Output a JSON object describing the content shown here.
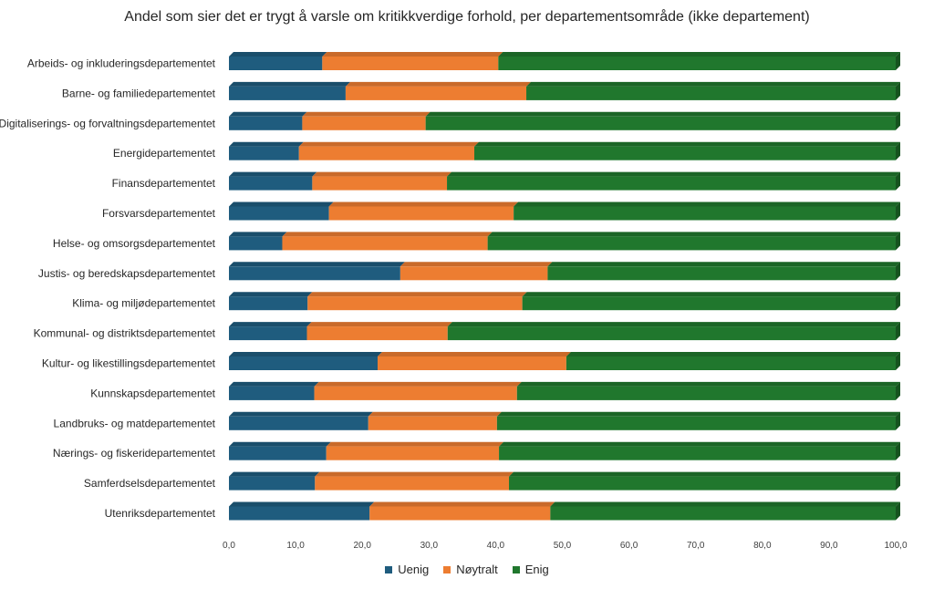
{
  "chart_data": {
    "type": "bar",
    "orientation": "horizontal",
    "stacked": true,
    "title": "Andel som sier det er trygt å varsle om kritikkverdige forhold, per departementsområde (ikke departement)",
    "xlabel": "",
    "ylabel": "",
    "xlim": [
      0,
      100
    ],
    "x_ticks": [
      "0,0",
      "10,0",
      "20,0",
      "30,0",
      "40,0",
      "50,0",
      "60,0",
      "70,0",
      "80,0",
      "90,0",
      "100,0"
    ],
    "grid": false,
    "legend_position": "bottom",
    "categories": [
      "Arbeids- og inkluderingsdepartementet",
      "Barne- og familiedepartementet",
      "Digitaliserings- og forvaltningsdepartementet",
      "Energidepartementet",
      "Finansdepartementet",
      "Forsvarsdepartementet",
      "Helse- og omsorgsdepartementet",
      "Justis- og beredskapsdepartementet",
      "Klima- og miljødepartementet",
      "Kommunal- og distriktsdepartementet",
      "Kultur- og likestillingsdepartementet",
      "Kunnskapsdepartementet",
      "Landbruks- og matdepartementet",
      "Nærings- og fiskeridepartementet",
      "Samferdselsdepartementet",
      "Utenriksdepartementet"
    ],
    "series": [
      {
        "name": "Uenig",
        "color": "#1F5C7E",
        "values": [
          14.0,
          17.5,
          11.0,
          10.5,
          12.5,
          15.0,
          8.0,
          25.7,
          11.8,
          11.7,
          22.3,
          12.8,
          20.9,
          14.6,
          12.9,
          21.1
        ]
      },
      {
        "name": "Nøytralt",
        "color": "#ED7D31",
        "values": [
          26.4,
          27.1,
          18.5,
          26.3,
          20.2,
          27.7,
          30.8,
          22.1,
          32.2,
          21.1,
          28.3,
          30.4,
          19.3,
          25.9,
          29.1,
          27.1
        ]
      },
      {
        "name": "Enig",
        "color": "#20772D",
        "values": [
          59.6,
          55.4,
          70.5,
          63.2,
          67.3,
          57.3,
          61.2,
          52.2,
          56.0,
          67.2,
          49.4,
          56.8,
          59.8,
          59.5,
          58.0,
          51.8
        ]
      }
    ]
  }
}
